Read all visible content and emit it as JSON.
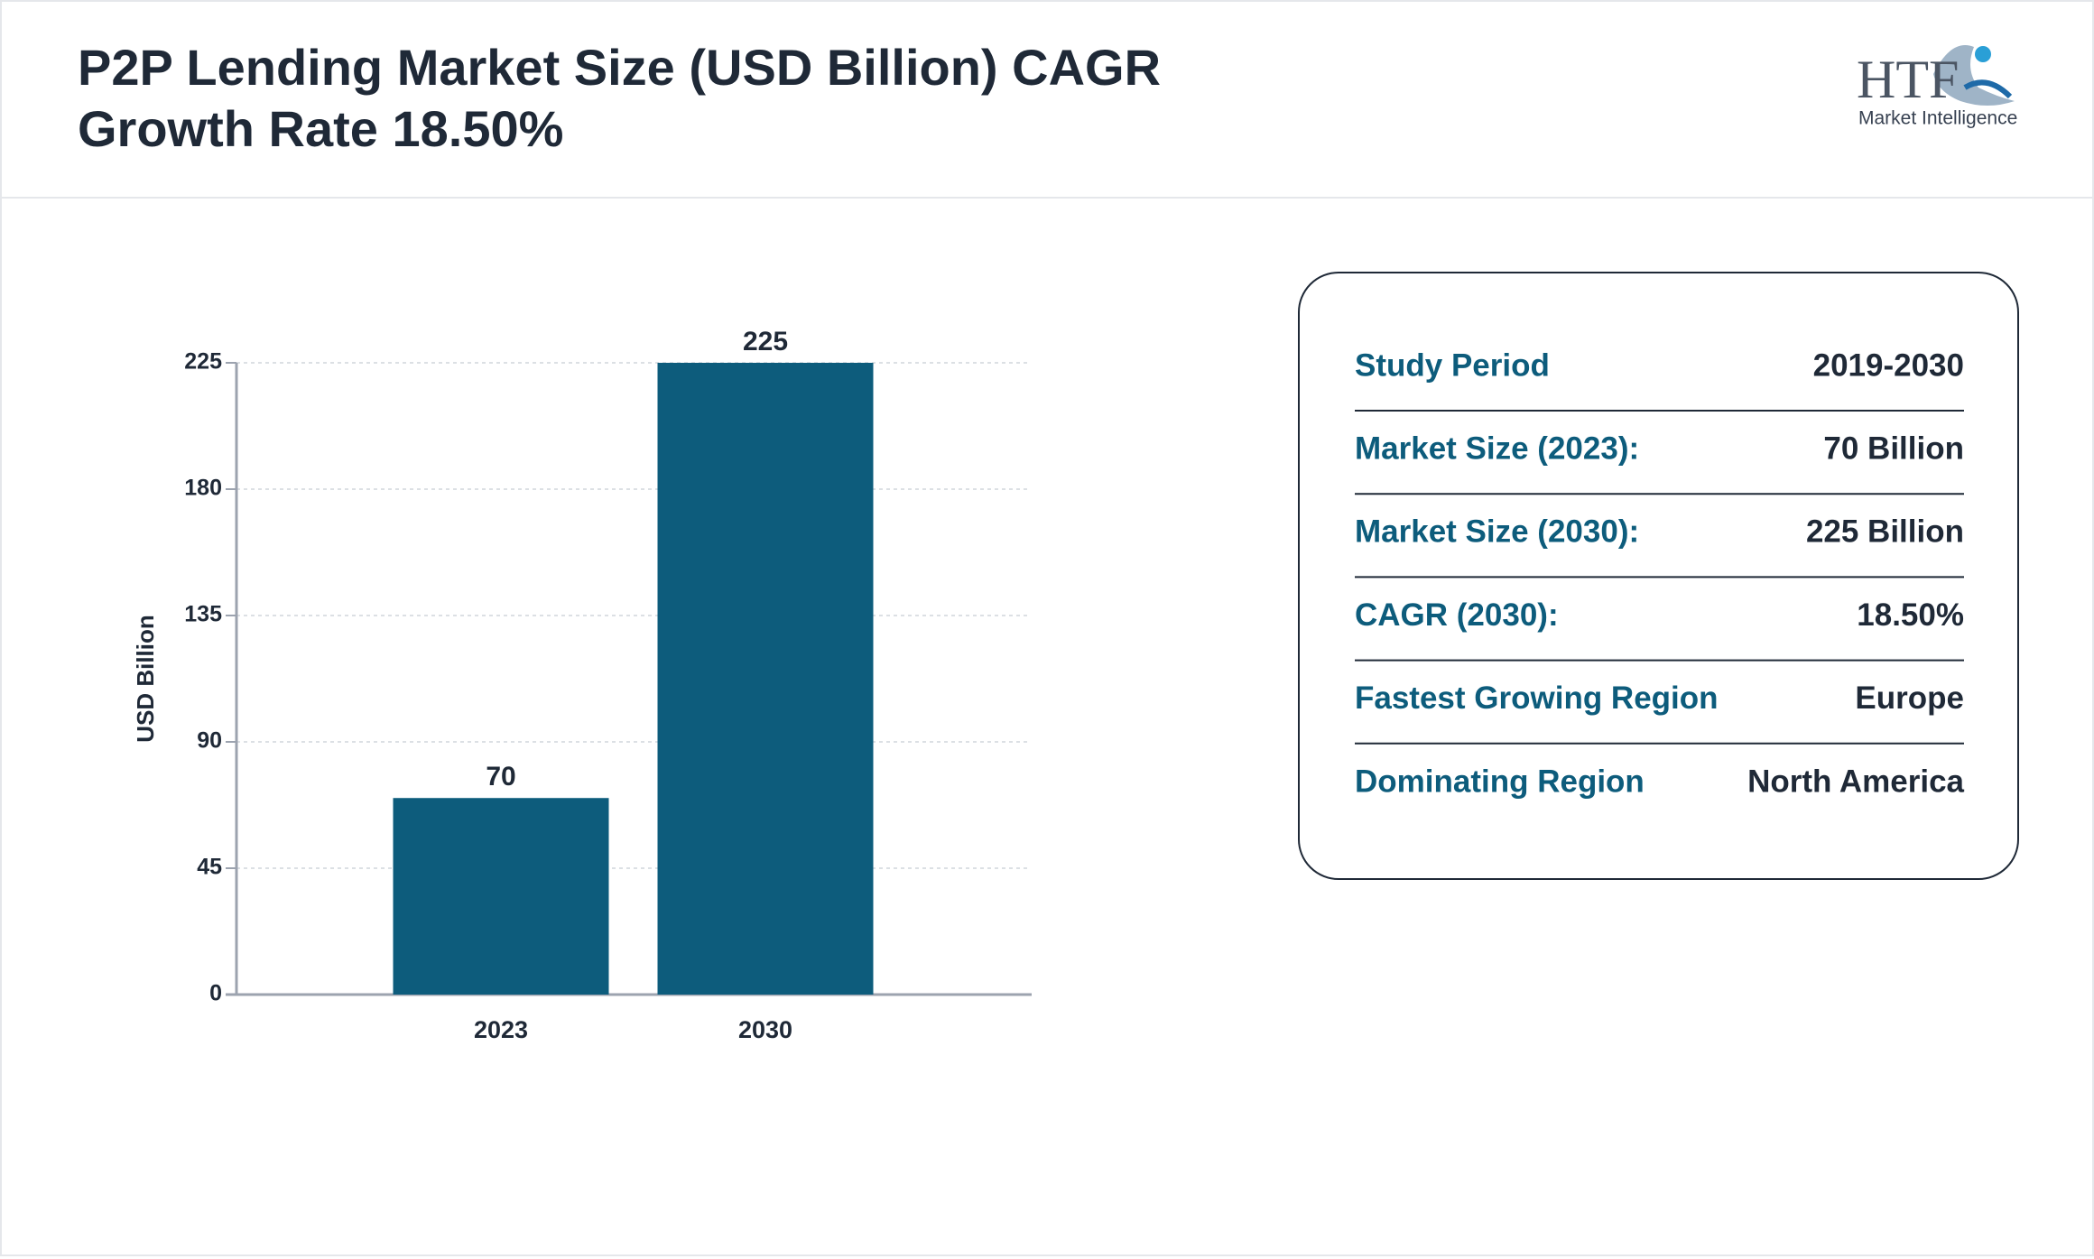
{
  "header": {
    "title_lines": [
      "P2P Lending Market Size (USD Billion) CAGR",
      "Growth Rate 18.50%"
    ],
    "logo": {
      "mark": "HTF",
      "tagline": "Market Intelligence"
    }
  },
  "chart_data": {
    "type": "bar",
    "categories": [
      "2023",
      "2030"
    ],
    "values": [
      70,
      225
    ],
    "color": "#0d5c7c",
    "y_label": "USD Billion",
    "ylim": [
      0,
      225
    ],
    "yticks": [
      0,
      45,
      90,
      135,
      180,
      225
    ],
    "grid": true,
    "data_labels": true
  },
  "info_table": {
    "rows": [
      [
        "Study Period",
        "2019-2030"
      ],
      [
        "Market Size (2023):",
        "70 Billion"
      ],
      [
        "Market Size (2030):",
        "225 Billion"
      ],
      [
        "CAGR (2030):",
        "18.50%"
      ],
      [
        "Fastest Growing Region",
        "Europe"
      ],
      [
        "Dominating Region",
        "North America"
      ]
    ]
  }
}
